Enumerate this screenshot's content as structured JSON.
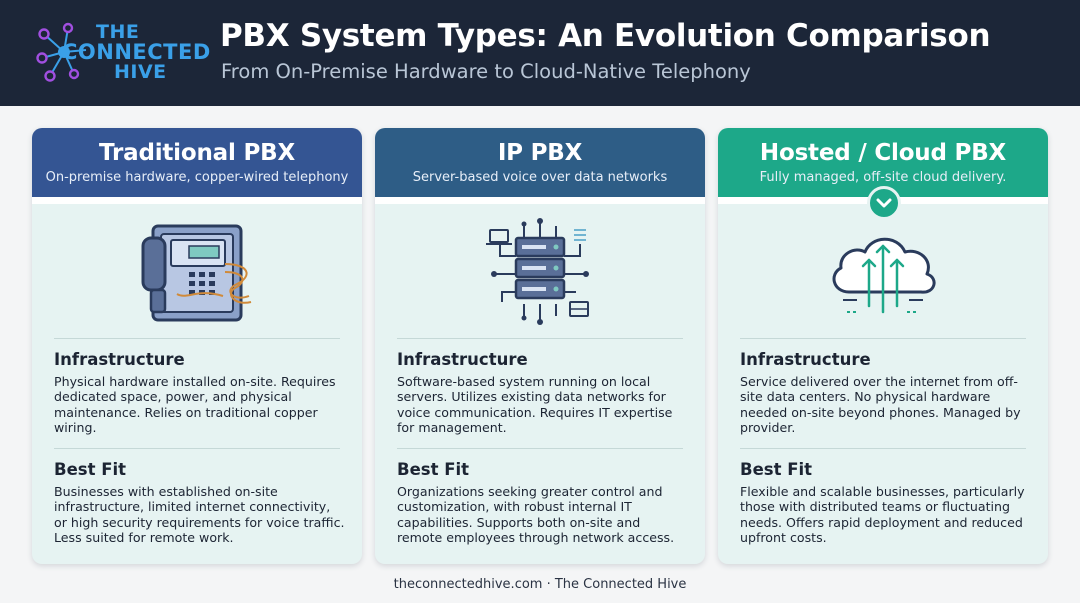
{
  "header": {
    "logo": {
      "line1": "THE",
      "line2": "CONNECTED",
      "line3": "HIVE"
    },
    "title": "PBX System Types: An Evolution Comparison",
    "subtitle": "From On-Premise Hardware to Cloud-Native Telephony"
  },
  "cards": [
    {
      "title": "Traditional PBX",
      "subtitle": "On-premise hardware, copper-wired telephony",
      "icon": "desk-phone-cabinet-icon",
      "accent": "#345593",
      "infrastructure_heading": "Infrastructure",
      "infrastructure_text": "Physical hardware installed on-site. Requires dedicated space, power, and physical maintenance. Relies on traditional copper wiring.",
      "bestfit_heading": "Best Fit",
      "bestfit_text": "Businesses with established on-site infrastructure, limited internet connectivity, or high security requirements for voice traffic. Less suited for remote work."
    },
    {
      "title": "IP PBX",
      "subtitle": "Server-based voice over data networks",
      "icon": "server-network-icon",
      "accent": "#2e5d86",
      "infrastructure_heading": "Infrastructure",
      "infrastructure_text": "Software-based system running on local servers. Utilizes existing data networks for voice communication. Requires IT expertise for management.",
      "bestfit_heading": "Best Fit",
      "bestfit_text": "Organizations seeking greater control and customization, with robust internal IT capabilities. Supports both on-site and remote employees through network access."
    },
    {
      "title": "Hosted / Cloud PBX",
      "subtitle": "Fully managed, off-site cloud delivery.",
      "icon": "cloud-upload-icon",
      "accent": "#1da889",
      "infrastructure_heading": "Infrastructure",
      "infrastructure_text": "Service delivered over the internet from off-site data centers. No physical hardware needed on-site beyond phones. Managed by provider.",
      "bestfit_heading": "Best Fit",
      "bestfit_text": "Flexible and scalable businesses, particularly those with distributed teams or fluctuating needs. Offers rapid deployment and reduced upfront costs."
    }
  ],
  "footer": "theconnectedhive.com · The Connected Hive"
}
